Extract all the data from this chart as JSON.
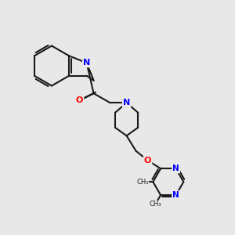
{
  "bg_color": "#e8e8e8",
  "figsize": [
    3.0,
    3.0
  ],
  "dpi": 100,
  "bond_color": "#1a1a1a",
  "bond_lw": 1.5,
  "atom_colors": {
    "N": "#0000ff",
    "O": "#ff0000",
    "C": "#1a1a1a"
  },
  "font_size": 7.5
}
